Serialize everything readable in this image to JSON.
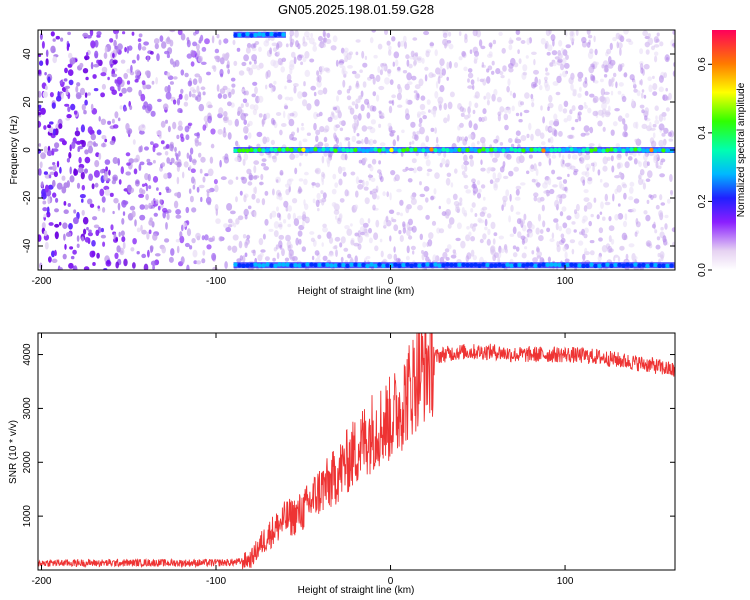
{
  "title": "GN05.2025.198.01.59.G28",
  "chart_data": [
    {
      "type": "heatmap",
      "xlabel": "Height of straight line (km)",
      "ylabel": "Frequency (Hz)",
      "xlim": [
        -202,
        163
      ],
      "ylim": [
        -50,
        50
      ],
      "xticks": [
        "-200",
        "-100",
        "0",
        "100"
      ],
      "yticks": [
        "-40",
        "-20",
        "0",
        "20",
        "40"
      ],
      "colorbar": {
        "label": "Normalized spectral amplitude",
        "range": [
          0,
          0.7
        ],
        "ticks": [
          "0.0",
          "0.2",
          "0.4",
          "0.6"
        ]
      },
      "features": [
        {
          "label": "carrier",
          "frequency_hz": 0,
          "x_start_km": -90,
          "x_end_km": 163
        },
        {
          "label": "band",
          "frequency_hz": 48,
          "x_start_km": -90,
          "x_end_km": -60
        },
        {
          "label": "band",
          "frequency_hz": -48,
          "x_start_km": -90,
          "x_end_km": 163
        }
      ],
      "grid": false
    },
    {
      "type": "line",
      "xlabel": "Height of straight line (km)",
      "ylabel": "SNR (10 * v/v)",
      "xlim": [
        -202,
        163
      ],
      "ylim": [
        0,
        4400
      ],
      "xticks": [
        "-200",
        "-100",
        "0",
        "100"
      ],
      "yticks": [
        "1000",
        "2000",
        "3000",
        "4000"
      ],
      "series": [
        {
          "x": [
            -202,
            -180,
            -160,
            -140,
            -120,
            -100,
            -90,
            -85,
            -80,
            -75,
            -70,
            -65,
            -60,
            -55,
            -50,
            -45,
            -40,
            -35,
            -30,
            -25,
            -20,
            -15,
            -10,
            -5,
            0,
            5,
            10,
            15,
            20,
            25,
            30,
            40,
            50,
            60,
            70,
            80,
            90,
            100,
            110,
            120,
            130,
            140,
            150,
            163
          ],
          "y": [
            130,
            130,
            130,
            135,
            130,
            135,
            140,
            160,
            200,
            450,
            650,
            800,
            950,
            1000,
            1100,
            1300,
            1500,
            1600,
            1800,
            2000,
            2200,
            2400,
            2600,
            2700,
            2800,
            3000,
            3300,
            3600,
            3800,
            3950,
            4000,
            4050,
            4050,
            4050,
            4000,
            4000,
            4000,
            4000,
            3980,
            3950,
            3900,
            3850,
            3800,
            3700
          ],
          "color": "#ee3333"
        }
      ],
      "grid": false
    }
  ]
}
